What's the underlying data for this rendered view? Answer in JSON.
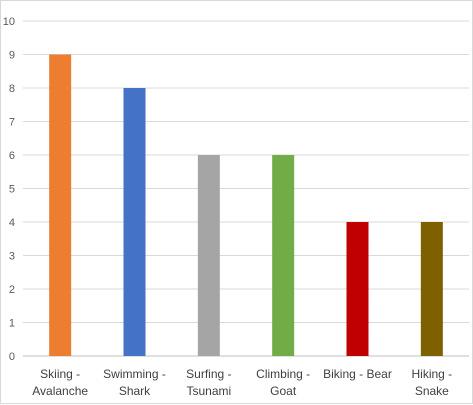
{
  "chart_data": {
    "type": "bar",
    "categories": [
      [
        "Skiing -",
        "Avalanche"
      ],
      [
        "Swimming -",
        "Shark"
      ],
      [
        "Surfing -",
        "Tsunami"
      ],
      [
        "Climbing -",
        "Goat"
      ],
      [
        "Biking - Bear"
      ],
      [
        "Hiking -",
        "Snake"
      ]
    ],
    "values": [
      9,
      8,
      6,
      6,
      4,
      4
    ],
    "colors": [
      "#ed7d31",
      "#4472c4",
      "#a5a5a5",
      "#70ad47",
      "#c00000",
      "#7f6000"
    ],
    "yticks": [
      0,
      1,
      2,
      3,
      4,
      5,
      6,
      7,
      8,
      9,
      10
    ],
    "ylim": [
      0,
      10
    ],
    "grid": true,
    "legend": "none"
  }
}
